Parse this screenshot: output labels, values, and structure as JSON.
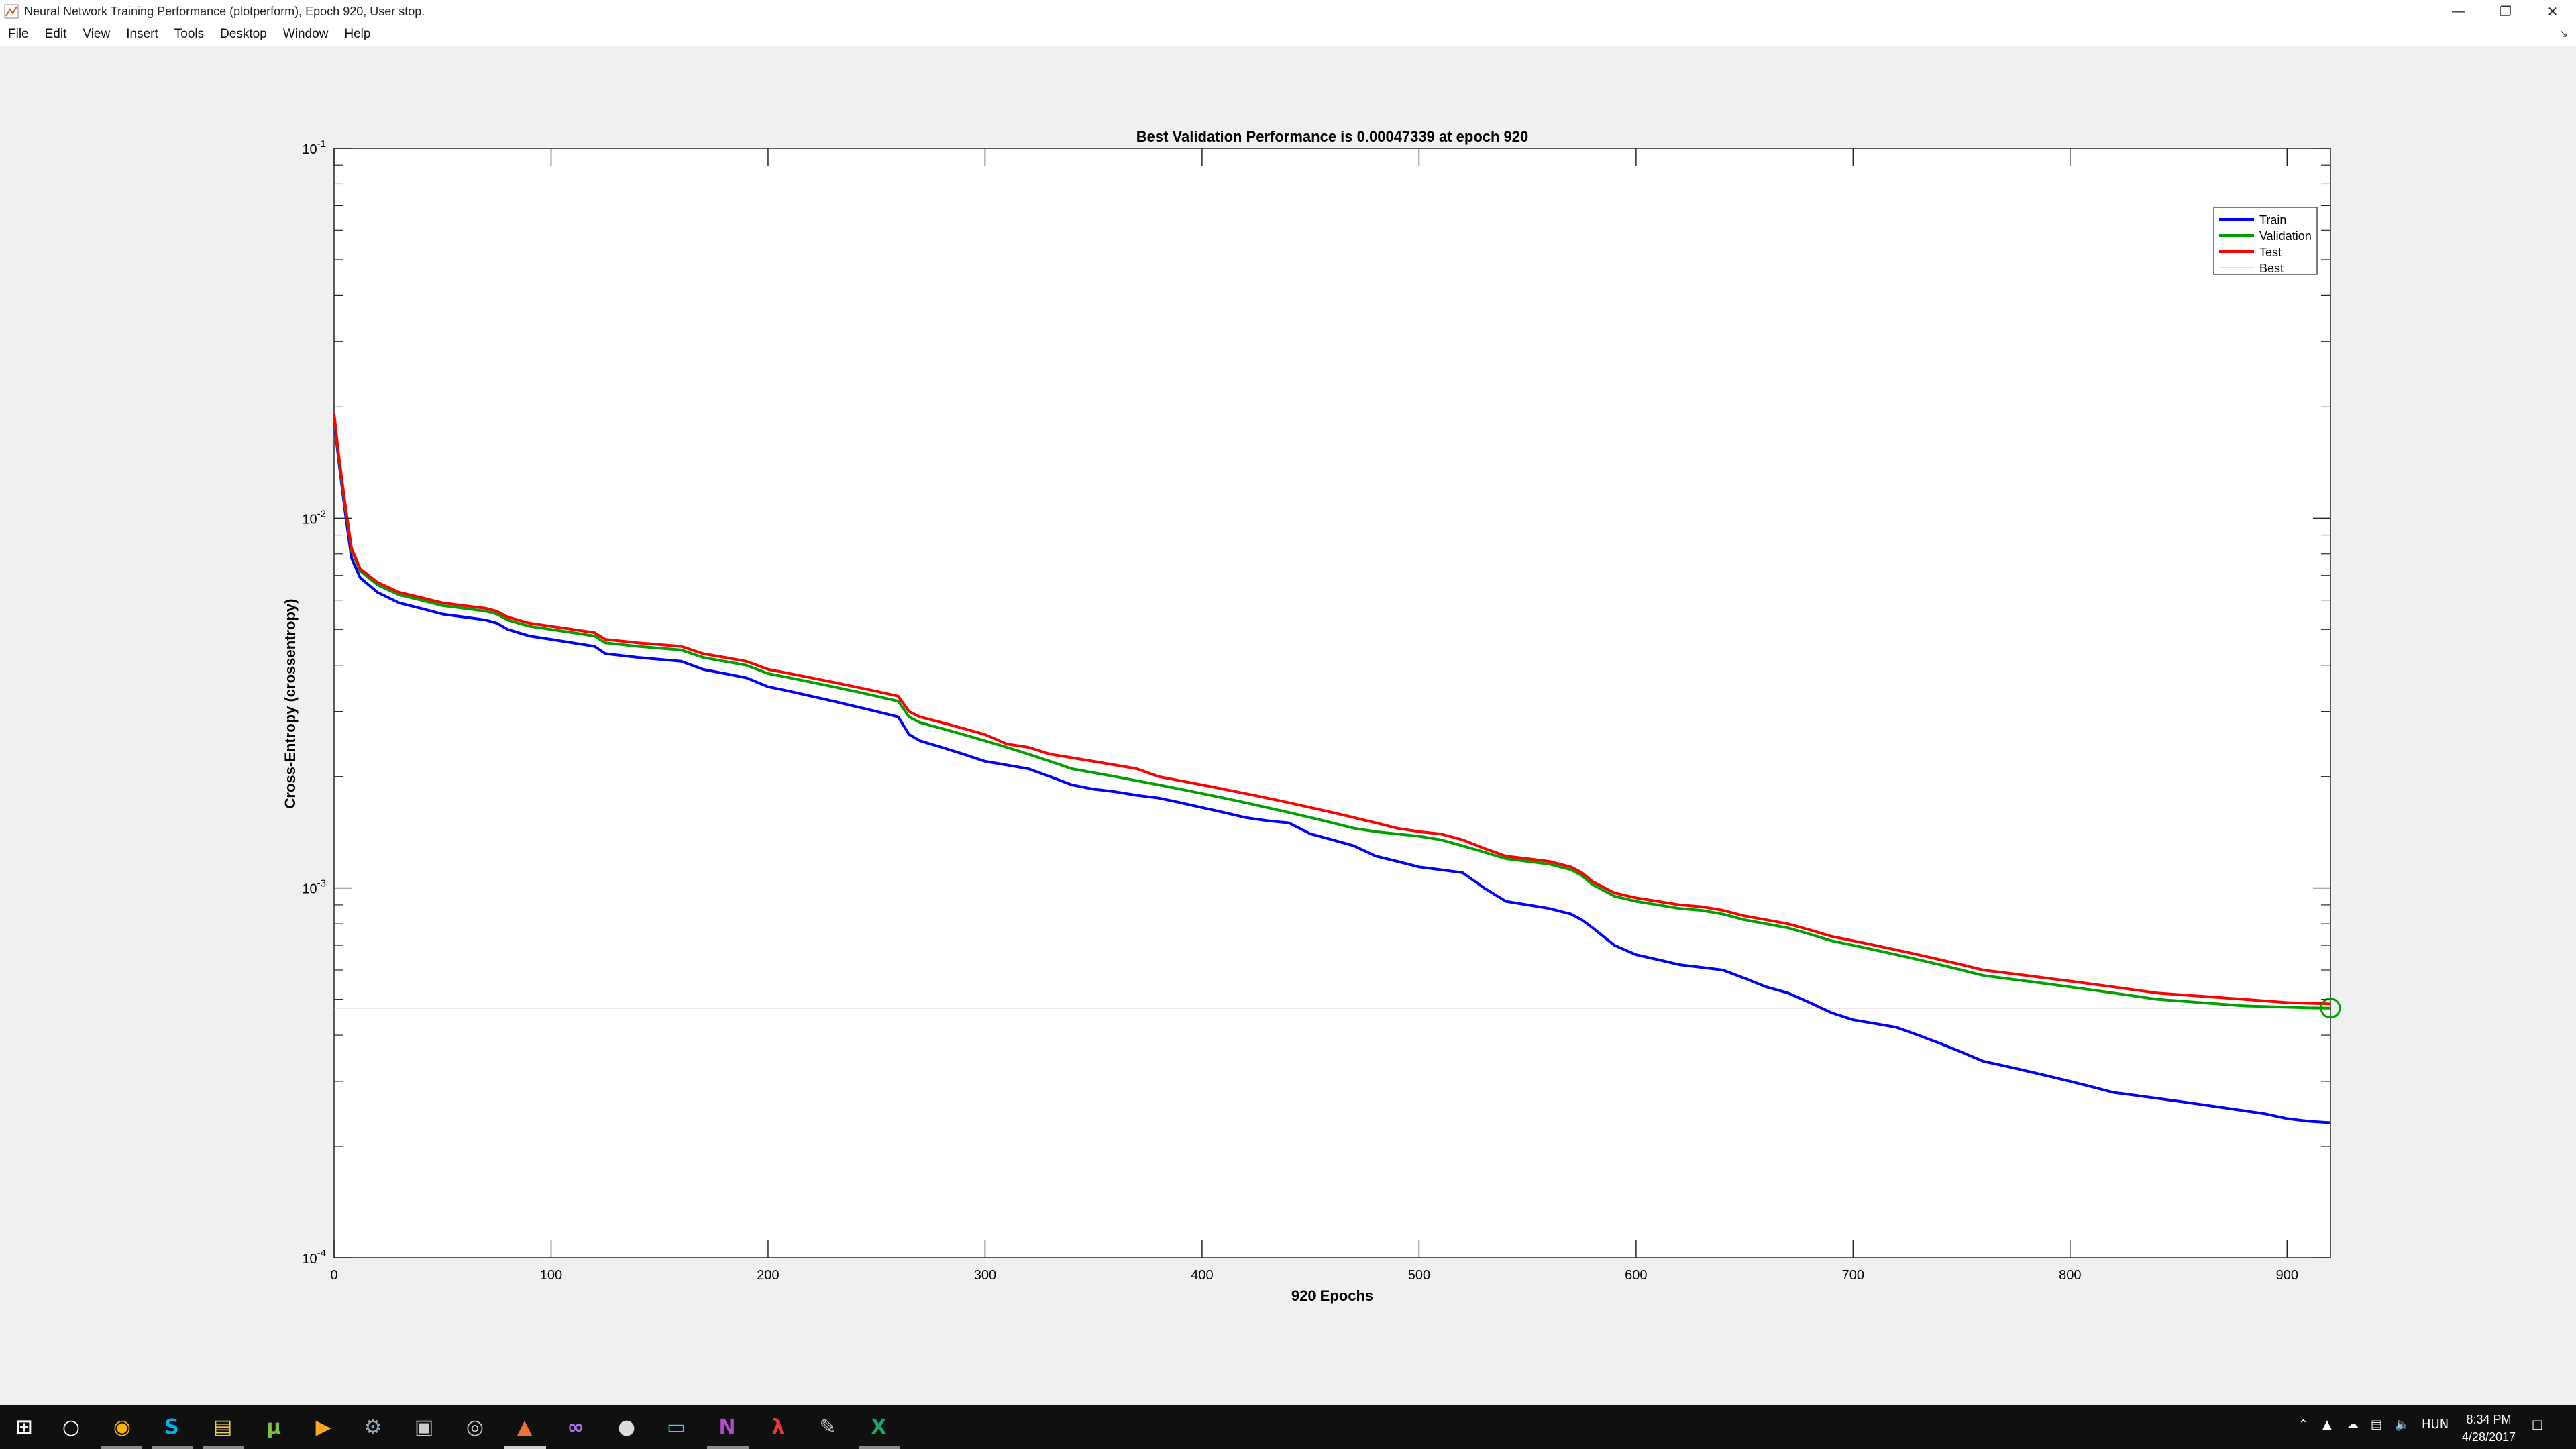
{
  "window": {
    "title": "Neural Network Training Performance (plotperform), Epoch 920, User stop.",
    "minimize_icon": "minimize-icon",
    "restore_icon": "restore-icon",
    "close_icon": "close-icon"
  },
  "menu": {
    "items": [
      "File",
      "Edit",
      "View",
      "Insert",
      "Tools",
      "Desktop",
      "Window",
      "Help"
    ]
  },
  "chart_data": {
    "type": "line",
    "title": "Best Validation Performance is 0.00047339 at epoch 920",
    "xlabel": "920 Epochs",
    "ylabel": "Cross-Entropy  (crossentropy)",
    "xlim": [
      0,
      920
    ],
    "ylim": [
      0.0001,
      0.1
    ],
    "yscale": "log",
    "grid": false,
    "legend_position": "top-right",
    "xticks": [
      0,
      100,
      200,
      300,
      400,
      500,
      600,
      700,
      800,
      900
    ],
    "yticks": [
      {
        "value": 0.1,
        "base": "10",
        "exp": "-1"
      },
      {
        "value": 0.01,
        "base": "10",
        "exp": "-2"
      },
      {
        "value": 0.001,
        "base": "10",
        "exp": "-3"
      },
      {
        "value": 0.0001,
        "base": "10",
        "exp": "-4"
      }
    ],
    "series": [
      {
        "name": "Train",
        "color": "#0000ff",
        "x": [
          0,
          2,
          5,
          8,
          12,
          20,
          30,
          40,
          50,
          60,
          70,
          75,
          80,
          90,
          100,
          110,
          120,
          125,
          140,
          160,
          170,
          180,
          190,
          200,
          210,
          220,
          230,
          240,
          250,
          260,
          265,
          270,
          280,
          290,
          300,
          310,
          320,
          330,
          340,
          350,
          360,
          370,
          380,
          390,
          400,
          410,
          420,
          430,
          440,
          450,
          460,
          470,
          480,
          490,
          500,
          510,
          520,
          530,
          540,
          550,
          560,
          570,
          575,
          580,
          590,
          600,
          610,
          620,
          630,
          640,
          650,
          660,
          670,
          680,
          690,
          700,
          710,
          720,
          730,
          740,
          750,
          760,
          770,
          780,
          790,
          800,
          810,
          820,
          830,
          840,
          850,
          860,
          870,
          880,
          890,
          900,
          910,
          920
        ],
        "y": [
          0.0185,
          0.0145,
          0.0105,
          0.0078,
          0.0069,
          0.0063,
          0.0059,
          0.0057,
          0.0055,
          0.0054,
          0.0053,
          0.0052,
          0.005,
          0.0048,
          0.0047,
          0.0046,
          0.0045,
          0.0043,
          0.0042,
          0.0041,
          0.0039,
          0.0038,
          0.0037,
          0.0035,
          0.0034,
          0.0033,
          0.0032,
          0.0031,
          0.003,
          0.0029,
          0.0026,
          0.0025,
          0.0024,
          0.0023,
          0.0022,
          0.00215,
          0.0021,
          0.002,
          0.0019,
          0.00185,
          0.00182,
          0.00178,
          0.00175,
          0.0017,
          0.00165,
          0.0016,
          0.00155,
          0.00152,
          0.0015,
          0.0014,
          0.00135,
          0.0013,
          0.00122,
          0.00118,
          0.00114,
          0.00112,
          0.0011,
          0.001,
          0.00092,
          0.0009,
          0.00088,
          0.00085,
          0.00082,
          0.00078,
          0.0007,
          0.00066,
          0.00064,
          0.00062,
          0.00061,
          0.0006,
          0.00057,
          0.00054,
          0.00052,
          0.00049,
          0.00046,
          0.00044,
          0.00043,
          0.00042,
          0.0004,
          0.00038,
          0.00036,
          0.00034,
          0.00033,
          0.00032,
          0.00031,
          0.0003,
          0.00029,
          0.00028,
          0.000275,
          0.00027,
          0.000265,
          0.00026,
          0.000255,
          0.00025,
          0.000245,
          0.000238,
          0.000234,
          0.000232
        ]
      },
      {
        "name": "Validation",
        "color": "#00a000",
        "x": [
          0,
          2,
          5,
          8,
          12,
          20,
          30,
          40,
          50,
          60,
          70,
          75,
          80,
          90,
          100,
          110,
          120,
          125,
          140,
          160,
          170,
          180,
          190,
          200,
          210,
          220,
          230,
          240,
          250,
          260,
          265,
          270,
          280,
          290,
          300,
          310,
          320,
          330,
          340,
          350,
          360,
          370,
          380,
          390,
          400,
          410,
          420,
          430,
          440,
          450,
          460,
          470,
          480,
          490,
          500,
          510,
          520,
          530,
          540,
          550,
          560,
          570,
          575,
          580,
          590,
          600,
          610,
          620,
          630,
          640,
          650,
          660,
          670,
          680,
          690,
          700,
          710,
          720,
          730,
          740,
          750,
          760,
          770,
          780,
          790,
          800,
          810,
          820,
          830,
          840,
          850,
          860,
          870,
          880,
          890,
          900,
          910,
          920
        ],
        "y": [
          0.019,
          0.0148,
          0.0108,
          0.0082,
          0.0072,
          0.0066,
          0.0062,
          0.006,
          0.0058,
          0.0057,
          0.0056,
          0.0055,
          0.0053,
          0.0051,
          0.005,
          0.0049,
          0.0048,
          0.0046,
          0.0045,
          0.0044,
          0.0042,
          0.0041,
          0.004,
          0.0038,
          0.0037,
          0.0036,
          0.0035,
          0.0034,
          0.0033,
          0.0032,
          0.0029,
          0.0028,
          0.0027,
          0.0026,
          0.0025,
          0.0024,
          0.0023,
          0.0022,
          0.0021,
          0.00205,
          0.002,
          0.00195,
          0.0019,
          0.00185,
          0.0018,
          0.00175,
          0.0017,
          0.00165,
          0.0016,
          0.00155,
          0.0015,
          0.00145,
          0.00142,
          0.0014,
          0.00138,
          0.00135,
          0.0013,
          0.00125,
          0.0012,
          0.00118,
          0.00116,
          0.00112,
          0.00108,
          0.00102,
          0.00095,
          0.00092,
          0.0009,
          0.00088,
          0.00087,
          0.00085,
          0.00082,
          0.0008,
          0.00078,
          0.00075,
          0.00072,
          0.0007,
          0.00068,
          0.00066,
          0.00064,
          0.00062,
          0.0006,
          0.00058,
          0.00057,
          0.00056,
          0.00055,
          0.00054,
          0.00053,
          0.00052,
          0.00051,
          0.0005,
          0.000495,
          0.00049,
          0.000485,
          0.00048,
          0.000478,
          0.000476,
          0.000474,
          0.00047339
        ]
      },
      {
        "name": "Test",
        "color": "#ff0000",
        "x": [
          0,
          2,
          5,
          8,
          12,
          20,
          30,
          40,
          50,
          60,
          70,
          75,
          80,
          90,
          100,
          110,
          120,
          125,
          140,
          160,
          170,
          180,
          190,
          200,
          210,
          220,
          230,
          240,
          250,
          260,
          265,
          270,
          280,
          290,
          300,
          310,
          320,
          330,
          340,
          350,
          360,
          370,
          380,
          390,
          400,
          410,
          420,
          430,
          440,
          450,
          460,
          470,
          480,
          490,
          500,
          510,
          520,
          530,
          540,
          550,
          560,
          570,
          575,
          580,
          590,
          600,
          610,
          620,
          630,
          640,
          650,
          660,
          670,
          680,
          690,
          700,
          710,
          720,
          730,
          740,
          750,
          760,
          770,
          780,
          790,
          800,
          810,
          820,
          830,
          840,
          850,
          860,
          870,
          880,
          890,
          900,
          910,
          920
        ],
        "y": [
          0.0192,
          0.015,
          0.011,
          0.0083,
          0.0073,
          0.0067,
          0.0063,
          0.0061,
          0.0059,
          0.0058,
          0.0057,
          0.0056,
          0.0054,
          0.0052,
          0.0051,
          0.005,
          0.0049,
          0.0047,
          0.0046,
          0.0045,
          0.0043,
          0.0042,
          0.0041,
          0.0039,
          0.0038,
          0.0037,
          0.0036,
          0.0035,
          0.0034,
          0.0033,
          0.003,
          0.0029,
          0.0028,
          0.0027,
          0.0026,
          0.00245,
          0.0024,
          0.0023,
          0.00225,
          0.0022,
          0.00215,
          0.0021,
          0.002,
          0.00195,
          0.0019,
          0.00185,
          0.0018,
          0.00175,
          0.0017,
          0.00165,
          0.0016,
          0.00155,
          0.0015,
          0.00145,
          0.00142,
          0.0014,
          0.00135,
          0.00128,
          0.00122,
          0.0012,
          0.00118,
          0.00114,
          0.0011,
          0.00104,
          0.00097,
          0.00094,
          0.00092,
          0.0009,
          0.00089,
          0.00087,
          0.00084,
          0.00082,
          0.0008,
          0.00077,
          0.00074,
          0.00072,
          0.0007,
          0.00068,
          0.00066,
          0.00064,
          0.00062,
          0.0006,
          0.00059,
          0.00058,
          0.00057,
          0.00056,
          0.00055,
          0.00054,
          0.00053,
          0.00052,
          0.000515,
          0.00051,
          0.000505,
          0.0005,
          0.000495,
          0.00049,
          0.000488,
          0.000486
        ]
      },
      {
        "name": "Best",
        "color": "#d8d8d8",
        "y_const": 0.00047339
      }
    ],
    "best_marker": {
      "x": 920,
      "y": 0.00047339,
      "color": "#00a000"
    }
  },
  "taskbar": {
    "icons": [
      "windows-start-icon",
      "cortana-search-icon",
      "chrome-icon",
      "skype-icon",
      "file-explorer-icon",
      "utorrent-icon",
      "media-player-icon",
      "steam-icon",
      "app-icon",
      "disc-icon",
      "matlab-icon",
      "visual-studio-icon",
      "github-icon",
      "remote-desktop-icon",
      "onenote-icon",
      "acrobat-icon",
      "inkscape-icon",
      "excel-icon"
    ],
    "language": "HUN",
    "time": "8:34 PM",
    "date": "4/28/2017"
  }
}
